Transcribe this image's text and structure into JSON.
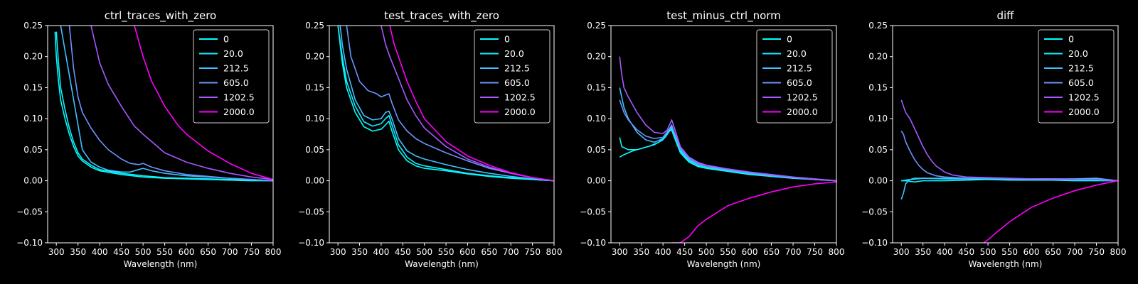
{
  "chart_data": [
    {
      "type": "line",
      "title": "ctrl_traces_with_zero",
      "xlabel": "Wavelength (nm)",
      "ylabel": "",
      "xlim": [
        280,
        800
      ],
      "ylim": [
        -0.1,
        0.25
      ],
      "xticks": [
        300,
        350,
        400,
        450,
        500,
        550,
        600,
        650,
        700,
        750,
        800
      ],
      "yticks": [
        -0.1,
        -0.05,
        0.0,
        0.05,
        0.1,
        0.15,
        0.2,
        0.25
      ],
      "grid": false,
      "legend": "top-right",
      "series": [
        {
          "name": "0",
          "color": "#00ffff",
          "x": [
            297,
            300,
            305,
            310,
            320,
            330,
            340,
            350,
            360,
            380,
            400,
            450,
            500,
            550,
            600,
            650,
            700,
            750,
            800
          ],
          "y": [
            0.24,
            0.2,
            0.16,
            0.13,
            0.1,
            0.075,
            0.055,
            0.04,
            0.032,
            0.022,
            0.016,
            0.01,
            0.006,
            0.004,
            0.003,
            0.002,
            0.001,
            0.0,
            0.0
          ]
        },
        {
          "name": "20.0",
          "color": "#0ef1ff",
          "x": [
            300,
            305,
            310,
            320,
            330,
            340,
            350,
            360,
            380,
            400,
            450,
            500,
            550,
            600,
            650,
            700,
            750,
            800
          ],
          "y": [
            0.24,
            0.19,
            0.15,
            0.115,
            0.085,
            0.062,
            0.045,
            0.035,
            0.025,
            0.018,
            0.012,
            0.008,
            0.005,
            0.004,
            0.003,
            0.002,
            0.001,
            0.0
          ]
        },
        {
          "name": "212.5",
          "color": "#3ec1ff",
          "x": [
            310,
            320,
            330,
            340,
            350,
            360,
            380,
            400,
            420,
            450,
            470,
            490,
            500,
            520,
            550,
            600,
            650,
            700,
            750,
            800
          ],
          "y": [
            0.25,
            0.21,
            0.17,
            0.13,
            0.09,
            0.05,
            0.03,
            0.022,
            0.017,
            0.014,
            0.014,
            0.018,
            0.02,
            0.016,
            0.012,
            0.008,
            0.006,
            0.004,
            0.002,
            0.0
          ]
        },
        {
          "name": "605.0",
          "color": "#6b94ff",
          "x": [
            330,
            340,
            350,
            360,
            380,
            400,
            420,
            450,
            470,
            490,
            500,
            520,
            550,
            600,
            650,
            700,
            750,
            800
          ],
          "y": [
            0.25,
            0.18,
            0.135,
            0.11,
            0.085,
            0.065,
            0.05,
            0.035,
            0.028,
            0.026,
            0.028,
            0.022,
            0.016,
            0.01,
            0.007,
            0.004,
            0.002,
            0.0
          ]
        },
        {
          "name": "1202.5",
          "color": "#a55aff",
          "x": [
            380,
            400,
            420,
            450,
            480,
            500,
            550,
            600,
            650,
            700,
            750,
            800
          ],
          "y": [
            0.25,
            0.19,
            0.155,
            0.12,
            0.088,
            0.075,
            0.045,
            0.03,
            0.02,
            0.012,
            0.006,
            0.002
          ]
        },
        {
          "name": "2000.0",
          "color": "#ff00ff",
          "x": [
            480,
            500,
            520,
            550,
            580,
            600,
            650,
            700,
            750,
            800
          ],
          "y": [
            0.25,
            0.2,
            0.16,
            0.12,
            0.09,
            0.075,
            0.048,
            0.028,
            0.012,
            0.002
          ]
        }
      ]
    },
    {
      "type": "line",
      "title": "test_traces_with_zero",
      "xlabel": "Wavelength (nm)",
      "ylabel": "",
      "xlim": [
        280,
        800
      ],
      "ylim": [
        -0.1,
        0.25
      ],
      "xticks": [
        300,
        350,
        400,
        450,
        500,
        550,
        600,
        650,
        700,
        750,
        800
      ],
      "yticks": [
        -0.1,
        -0.05,
        0.0,
        0.05,
        0.1,
        0.15,
        0.2,
        0.25
      ],
      "grid": false,
      "legend": "top-right",
      "series": [
        {
          "name": "0",
          "color": "#00ffff",
          "x": [
            300,
            310,
            320,
            340,
            360,
            380,
            400,
            410,
            418,
            425,
            440,
            460,
            480,
            500,
            550,
            600,
            650,
            700,
            750,
            800
          ],
          "y": [
            0.25,
            0.19,
            0.15,
            0.11,
            0.087,
            0.08,
            0.083,
            0.09,
            0.096,
            0.08,
            0.05,
            0.032,
            0.024,
            0.02,
            0.016,
            0.011,
            0.007,
            0.004,
            0.002,
            0.0
          ]
        },
        {
          "name": "20.0",
          "color": "#0ef1ff",
          "x": [
            300,
            310,
            320,
            340,
            360,
            380,
            400,
            410,
            418,
            425,
            440,
            460,
            480,
            500,
            550,
            600,
            650,
            700,
            750,
            800
          ],
          "y": [
            0.25,
            0.2,
            0.16,
            0.12,
            0.095,
            0.088,
            0.092,
            0.1,
            0.105,
            0.09,
            0.058,
            0.038,
            0.028,
            0.024,
            0.018,
            0.012,
            0.008,
            0.005,
            0.002,
            0.0
          ]
        },
        {
          "name": "212.5",
          "color": "#3ec1ff",
          "x": [
            305,
            310,
            320,
            340,
            360,
            380,
            400,
            410,
            418,
            425,
            440,
            460,
            480,
            500,
            550,
            600,
            650,
            700,
            750,
            800
          ],
          "y": [
            0.25,
            0.22,
            0.18,
            0.13,
            0.105,
            0.098,
            0.1,
            0.11,
            0.112,
            0.1,
            0.068,
            0.048,
            0.04,
            0.035,
            0.026,
            0.018,
            0.012,
            0.007,
            0.003,
            0.0
          ]
        },
        {
          "name": "605.0",
          "color": "#6b94ff",
          "x": [
            320,
            330,
            350,
            370,
            390,
            400,
            410,
            418,
            425,
            440,
            460,
            480,
            500,
            550,
            600,
            650,
            700,
            750,
            800
          ],
          "y": [
            0.25,
            0.2,
            0.16,
            0.145,
            0.14,
            0.135,
            0.138,
            0.14,
            0.125,
            0.098,
            0.08,
            0.068,
            0.06,
            0.045,
            0.032,
            0.02,
            0.012,
            0.005,
            0.0
          ]
        },
        {
          "name": "1202.5",
          "color": "#a55aff",
          "x": [
            400,
            410,
            420,
            440,
            460,
            480,
            500,
            550,
            600,
            650,
            700,
            750,
            800
          ],
          "y": [
            0.25,
            0.22,
            0.2,
            0.165,
            0.13,
            0.105,
            0.085,
            0.055,
            0.035,
            0.022,
            0.012,
            0.005,
            0.0
          ]
        },
        {
          "name": "2000.0",
          "color": "#ff00ff",
          "x": [
            420,
            430,
            440,
            460,
            480,
            500,
            550,
            600,
            650,
            700,
            750,
            800
          ],
          "y": [
            0.25,
            0.22,
            0.2,
            0.16,
            0.128,
            0.1,
            0.063,
            0.04,
            0.025,
            0.013,
            0.005,
            0.0
          ]
        }
      ]
    },
    {
      "type": "line",
      "title": "test_minus_ctrl_norm",
      "xlabel": "Wavelength (nm)",
      "ylabel": "",
      "xlim": [
        280,
        800
      ],
      "ylim": [
        -0.1,
        0.25
      ],
      "xticks": [
        300,
        350,
        400,
        450,
        500,
        550,
        600,
        650,
        700,
        750,
        800
      ],
      "yticks": [
        -0.1,
        -0.05,
        0.0,
        0.05,
        0.1,
        0.15,
        0.2,
        0.25
      ],
      "grid": false,
      "legend": "top-right",
      "series": [
        {
          "name": "0",
          "color": "#00ffff",
          "x": [
            300,
            310,
            330,
            350,
            370,
            390,
            405,
            415,
            420,
            425,
            440,
            460,
            480,
            500,
            550,
            600,
            650,
            700,
            750,
            800
          ],
          "y": [
            0.038,
            0.042,
            0.048,
            0.052,
            0.056,
            0.062,
            0.07,
            0.08,
            0.082,
            0.072,
            0.045,
            0.03,
            0.023,
            0.02,
            0.015,
            0.01,
            0.007,
            0.004,
            0.002,
            0.0
          ]
        },
        {
          "name": "20.0",
          "color": "#0ef1ff",
          "x": [
            300,
            305,
            320,
            340,
            360,
            380,
            400,
            415,
            420,
            425,
            440,
            460,
            480,
            500,
            550,
            600,
            650,
            700,
            750,
            800
          ],
          "y": [
            0.07,
            0.055,
            0.05,
            0.05,
            0.054,
            0.058,
            0.066,
            0.08,
            0.085,
            0.075,
            0.048,
            0.032,
            0.025,
            0.021,
            0.016,
            0.011,
            0.007,
            0.004,
            0.002,
            0.0
          ]
        },
        {
          "name": "212.5",
          "color": "#3ec1ff",
          "x": [
            300,
            310,
            320,
            340,
            360,
            380,
            400,
            415,
            420,
            425,
            440,
            460,
            480,
            500,
            550,
            600,
            650,
            700,
            750,
            800
          ],
          "y": [
            0.15,
            0.118,
            0.1,
            0.078,
            0.066,
            0.062,
            0.068,
            0.082,
            0.088,
            0.078,
            0.05,
            0.034,
            0.026,
            0.022,
            0.017,
            0.012,
            0.008,
            0.005,
            0.002,
            0.0
          ]
        },
        {
          "name": "605.0",
          "color": "#6b94ff",
          "x": [
            300,
            310,
            320,
            340,
            360,
            380,
            400,
            415,
            420,
            425,
            440,
            460,
            480,
            500,
            550,
            600,
            650,
            700,
            750,
            800
          ],
          "y": [
            0.13,
            0.11,
            0.098,
            0.082,
            0.072,
            0.068,
            0.07,
            0.084,
            0.09,
            0.08,
            0.052,
            0.036,
            0.028,
            0.024,
            0.018,
            0.013,
            0.009,
            0.005,
            0.002,
            0.0
          ]
        },
        {
          "name": "1202.5",
          "color": "#a55aff",
          "x": [
            300,
            305,
            310,
            320,
            340,
            360,
            380,
            400,
            410,
            420,
            425,
            440,
            460,
            480,
            500,
            550,
            600,
            650,
            700,
            750,
            800
          ],
          "y": [
            0.2,
            0.17,
            0.15,
            0.135,
            0.11,
            0.09,
            0.078,
            0.076,
            0.082,
            0.098,
            0.088,
            0.055,
            0.038,
            0.03,
            0.025,
            0.019,
            0.014,
            0.01,
            0.006,
            0.003,
            0.0
          ]
        },
        {
          "name": "2000.0",
          "color": "#ff00ff",
          "x": [
            420,
            430,
            440,
            460,
            480,
            500,
            550,
            600,
            650,
            700,
            750,
            800
          ],
          "y": [
            -0.1,
            -0.1,
            -0.1,
            -0.09,
            -0.073,
            -0.062,
            -0.04,
            -0.028,
            -0.018,
            -0.01,
            -0.005,
            -0.002
          ]
        }
      ]
    },
    {
      "type": "line",
      "title": "diff",
      "xlabel": "Wavelength (nm)",
      "ylabel": "",
      "xlim": [
        280,
        800
      ],
      "ylim": [
        -0.1,
        0.25
      ],
      "xticks": [
        300,
        350,
        400,
        450,
        500,
        550,
        600,
        650,
        700,
        750,
        800
      ],
      "yticks": [
        -0.1,
        -0.05,
        0.0,
        0.05,
        0.1,
        0.15,
        0.2,
        0.25
      ],
      "grid": false,
      "legend": "top-right",
      "series": [
        {
          "name": "0",
          "color": "#00ffff",
          "x": [
            300,
            320,
            350,
            400,
            450,
            500,
            550,
            600,
            650,
            700,
            750,
            800
          ],
          "y": [
            0.0,
            0.002,
            0.004,
            0.003,
            0.003,
            0.002,
            0.002,
            0.002,
            0.001,
            0.001,
            0.001,
            0.0
          ]
        },
        {
          "name": "20.0",
          "color": "#0ef1ff",
          "x": [
            300,
            310,
            330,
            350,
            400,
            450,
            500,
            550,
            600,
            650,
            700,
            750,
            800
          ],
          "y": [
            0.0,
            0.0,
            -0.002,
            0.0,
            0.0,
            0.001,
            0.002,
            0.001,
            0.001,
            0.001,
            0.0,
            0.0,
            0.0
          ]
        },
        {
          "name": "212.5",
          "color": "#3ec1ff",
          "x": [
            300,
            305,
            310,
            320,
            330,
            350,
            400,
            450,
            500,
            550,
            600,
            650,
            700,
            750,
            800
          ],
          "y": [
            -0.03,
            -0.02,
            -0.005,
            0.002,
            0.004,
            0.004,
            0.004,
            0.004,
            0.004,
            0.003,
            0.003,
            0.003,
            0.003,
            0.004,
            0.0
          ]
        },
        {
          "name": "605.0",
          "color": "#6b94ff",
          "x": [
            300,
            305,
            310,
            320,
            330,
            340,
            350,
            360,
            380,
            400,
            450,
            500,
            550,
            600,
            650,
            700,
            750,
            800
          ],
          "y": [
            0.08,
            0.075,
            0.063,
            0.048,
            0.035,
            0.025,
            0.018,
            0.013,
            0.008,
            0.006,
            0.004,
            0.004,
            0.003,
            0.003,
            0.003,
            0.002,
            0.002,
            0.0
          ]
        },
        {
          "name": "1202.5",
          "color": "#a55aff",
          "x": [
            300,
            305,
            310,
            320,
            330,
            340,
            350,
            360,
            370,
            380,
            400,
            420,
            450,
            500,
            550,
            600,
            650,
            700,
            750,
            800
          ],
          "y": [
            0.13,
            0.12,
            0.11,
            0.1,
            0.085,
            0.07,
            0.055,
            0.042,
            0.032,
            0.024,
            0.014,
            0.009,
            0.006,
            0.005,
            0.004,
            0.003,
            0.003,
            0.002,
            0.002,
            0.0
          ]
        },
        {
          "name": "2000.0",
          "color": "#ff00ff",
          "x": [
            490,
            500,
            520,
            550,
            580,
            600,
            650,
            700,
            750,
            800
          ],
          "y": [
            -0.1,
            -0.095,
            -0.083,
            -0.066,
            -0.052,
            -0.043,
            -0.028,
            -0.016,
            -0.007,
            0.0
          ]
        }
      ]
    }
  ]
}
